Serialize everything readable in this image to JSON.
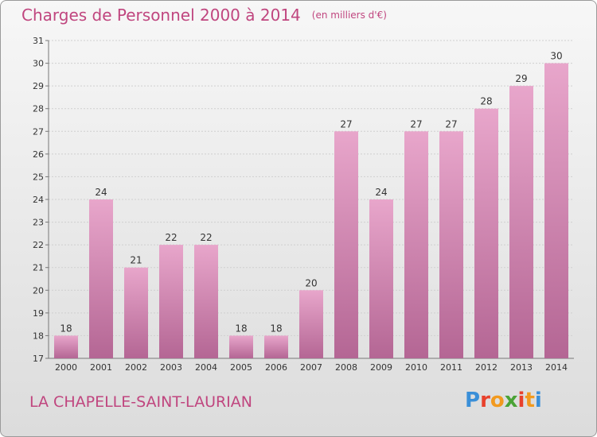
{
  "title": "Charges de Personnel 2000 à 2014",
  "unit": "(en milliers d'€)",
  "commune": "LA CHAPELLE-SAINT-LAURIAN",
  "logo": {
    "letters": [
      "P",
      "r",
      "o",
      "x",
      "i",
      "t",
      "i"
    ],
    "colors": [
      "#3a8fd8",
      "#e8412c",
      "#f29a1f",
      "#4aa336",
      "#e8412c",
      "#f29a1f",
      "#3a8fd8"
    ]
  },
  "colors": {
    "bar_top": "#e8a6cb",
    "bar_bottom": "#b46694",
    "title": "#c0467f"
  },
  "chart_data": {
    "type": "bar",
    "title": "Charges de Personnel 2000 à 2014",
    "subtitle": "(en milliers d'€)",
    "categories": [
      "2000",
      "2001",
      "2002",
      "2003",
      "2004",
      "2005",
      "2006",
      "2007",
      "2008",
      "2009",
      "2010",
      "2011",
      "2012",
      "2013",
      "2014"
    ],
    "values": [
      18,
      24,
      21,
      22,
      22,
      18,
      18,
      20,
      27,
      24,
      27,
      27,
      28,
      29,
      30
    ],
    "ylim": [
      17,
      31
    ],
    "yticks": [
      17,
      18,
      19,
      20,
      21,
      22,
      23,
      24,
      25,
      26,
      27,
      28,
      29,
      30,
      31
    ],
    "grid": true,
    "data_labels": true
  }
}
